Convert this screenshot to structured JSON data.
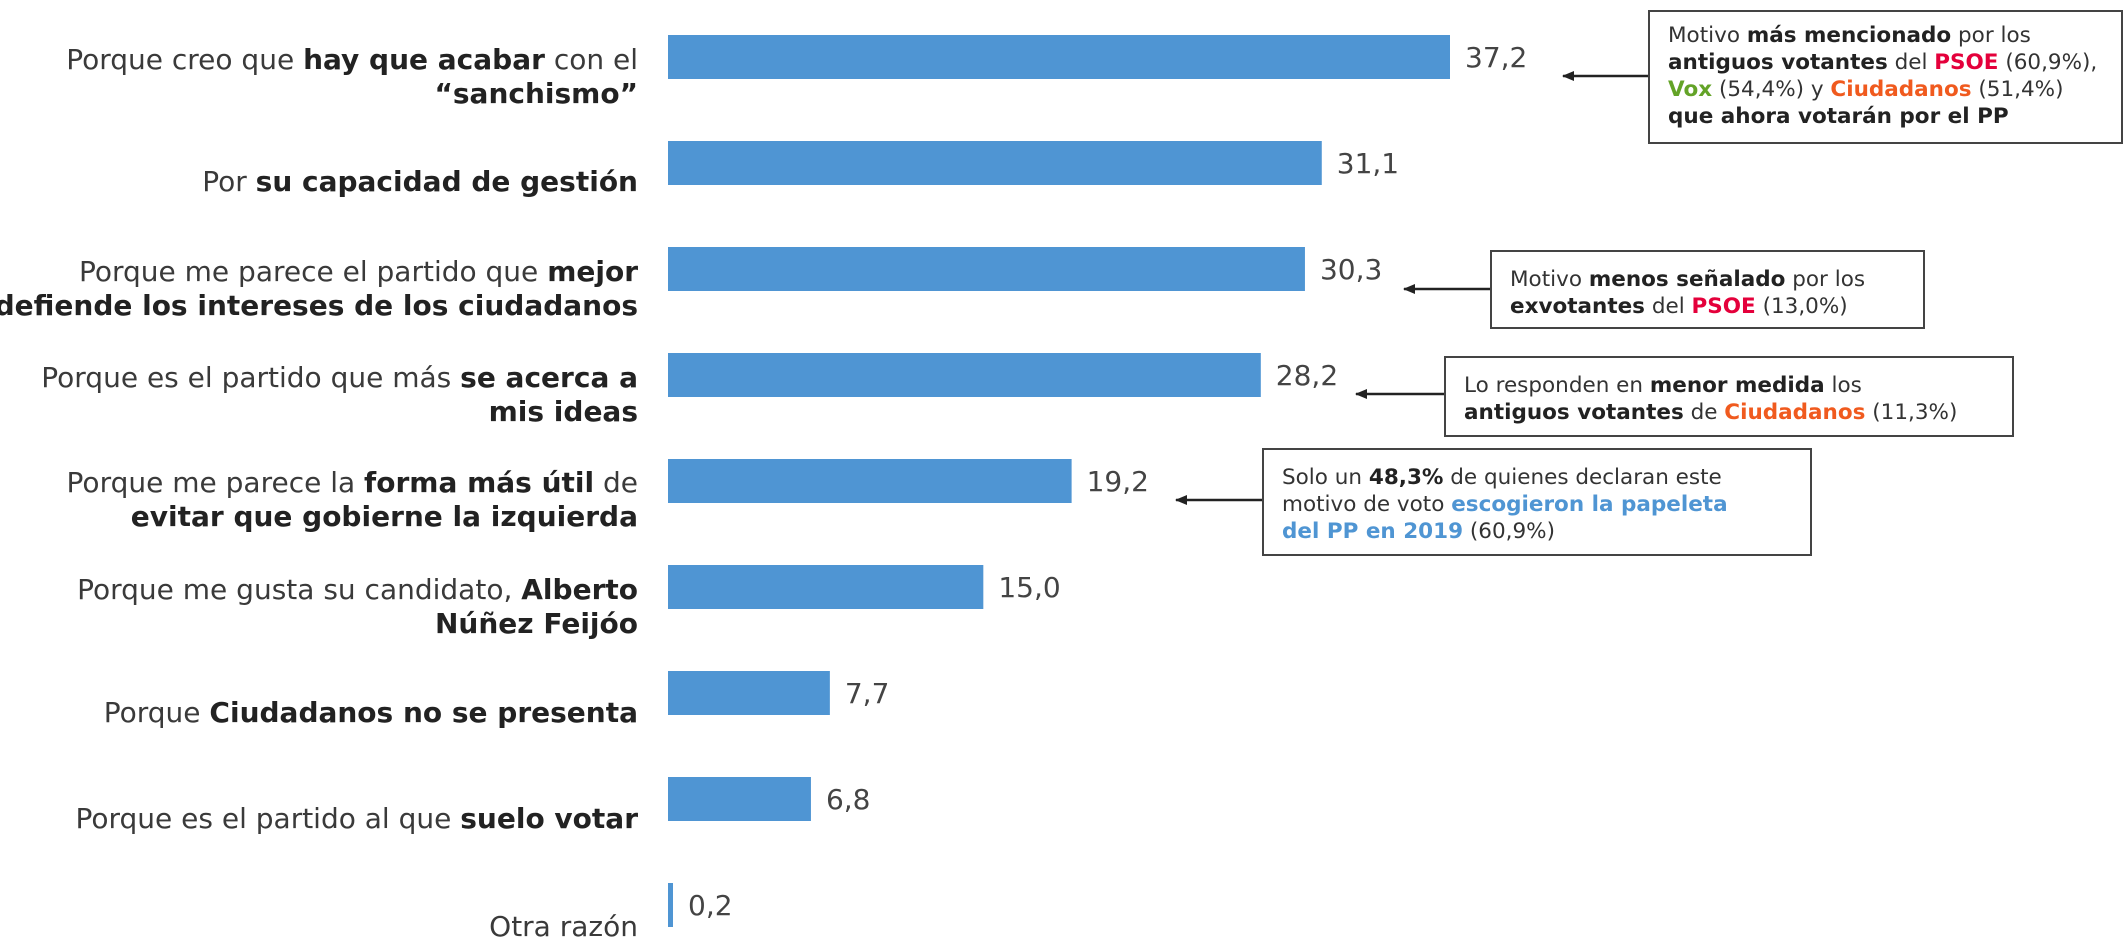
{
  "colors": {
    "bar": "#4f95d3",
    "psoe": "#e4003b",
    "vox": "#63a327",
    "ciudadanos": "#f05a1e",
    "pp": "#4f95d3"
  },
  "chart_data": {
    "type": "bar",
    "orientation": "horizontal",
    "title": "",
    "xlabel": "",
    "ylabel": "",
    "xlim": [
      0,
      37.2
    ],
    "grid": false,
    "categories": [
      "Porque creo que hay que acabar con el “sanchismo”",
      "Por su capacidad de gestión",
      "Porque me parece el partido que mejor defiende los intereses de los ciudadanos",
      "Porque es el partido que más se acerca a mis ideas",
      "Porque me parece la forma más útil de evitar que gobierne la izquierda",
      "Porque me gusta su candidato, Alberto Núñez Feijóo",
      "Porque Ciudadanos no se presenta",
      "Porque es el partido al que suelo votar",
      "Otra razón"
    ],
    "values": [
      37.2,
      31.1,
      30.3,
      28.2,
      19.2,
      15.0,
      7.7,
      6.8,
      0.2
    ],
    "value_labels": [
      "37,2",
      "31,1",
      "30,3",
      "28,2",
      "19,2",
      "15,0",
      "7,7",
      "6,8",
      "0,2"
    ]
  },
  "labels": [
    {
      "p1": "Porque creo que ",
      "b1": "hay que acabar",
      "p2": " con el",
      "p3": "",
      "b2": "“sanchismo”"
    },
    {
      "p1": "Por ",
      "b1": "su capacidad de gestión",
      "p2": "",
      "p3": "",
      "b2": ""
    },
    {
      "p1": "Porque me parece el partido que ",
      "b1": "mejor",
      "p2": "",
      "p3": "",
      "b2": "defiende los intereses de los ciudadanos"
    },
    {
      "p1": "Porque es el partido que más ",
      "b1": "se acerca a",
      "p2": "",
      "p3": "",
      "b2": "mis ideas"
    },
    {
      "p1": "Porque me parece la ",
      "b1": "forma más útil",
      "p2": " de",
      "p3": "",
      "b2": "evitar que gobierne la izquierda"
    },
    {
      "p1": "Porque me gusta su candidato, ",
      "b1": "Alberto",
      "p2": "",
      "p3": "",
      "b2": "Núñez Feijóo"
    },
    {
      "p1": "Porque ",
      "b1": "Ciudadanos no se presenta",
      "p2": "",
      "p3": "",
      "b2": ""
    },
    {
      "p1": "Porque es el partido al que ",
      "b1": "suelo votar",
      "p2": "",
      "p3": "",
      "b2": ""
    },
    {
      "p1": "Otra razón",
      "b1": "",
      "p2": "",
      "p3": "",
      "b2": ""
    }
  ],
  "annotations": {
    "note1": {
      "t1": "Motivo ",
      "b1": "más mencionado",
      "t2": " por los",
      "b2": "antiguos votantes",
      "t3": " del ",
      "psoe": "PSOE",
      "t4": " (60,9%),",
      "vox": "Vox",
      "t5": " (54,4%) y ",
      "cs": "Ciudadanos",
      "t6": " (51,4%)",
      "b3": "que ahora votarán por el PP"
    },
    "note2": {
      "t1": "Motivo ",
      "b1": "menos señalado",
      "t2": " por los",
      "b2": "exvotantes",
      "t3": " del ",
      "psoe": "PSOE",
      "t4": " (13,0%)"
    },
    "note3": {
      "t1": "Lo responden en ",
      "b1": "menor medida",
      "t2": " los",
      "b2": "antiguos votantes",
      "t3": " de ",
      "cs": "Ciudadanos",
      "t4": " (11,3%)"
    },
    "note4": {
      "t1": "Solo un ",
      "b1": "48,3%",
      "t2": " de quienes declaran este",
      "t3": "motivo de voto ",
      "pp1": "escogieron la papeleta",
      "pp2": "del PP en 2019",
      "t4": " (60,9%)"
    }
  }
}
